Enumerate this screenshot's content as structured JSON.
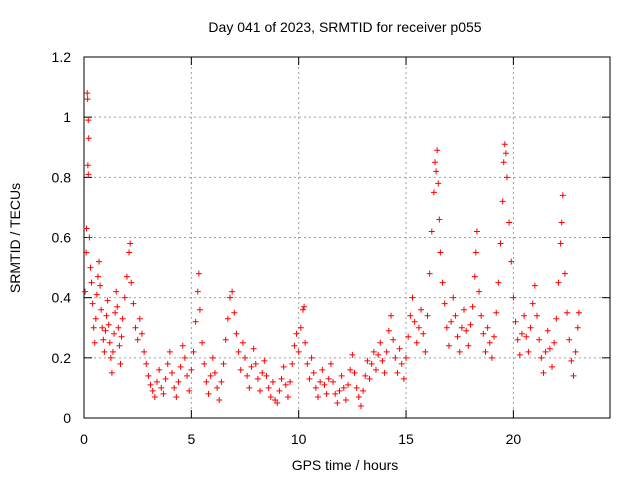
{
  "chart_data": {
    "type": "scatter",
    "title": "Day 041 of 2023, SRMTID for receiver p055",
    "xlabel": "GPS time / hours",
    "ylabel": "SRMTID / TECUs",
    "xlim": [
      0,
      24.5
    ],
    "ylim": [
      0,
      1.2
    ],
    "xticks": [
      0,
      5,
      10,
      15,
      20
    ],
    "yticks": [
      0,
      0.2,
      0.4,
      0.6,
      0.8,
      1,
      1.2
    ],
    "grid": true,
    "marker": "+",
    "color": "#ff0000",
    "series": [
      {
        "name": "SRMTID",
        "points": [
          [
            0.05,
            0.42
          ],
          [
            0.1,
            0.55
          ],
          [
            0.12,
            0.63
          ],
          [
            0.15,
            1.08
          ],
          [
            0.17,
            1.06
          ],
          [
            0.2,
            0.99
          ],
          [
            0.22,
            0.93
          ],
          [
            0.18,
            0.84
          ],
          [
            0.2,
            0.81
          ],
          [
            0.25,
            0.6
          ],
          [
            0.3,
            0.5
          ],
          [
            0.35,
            0.45
          ],
          [
            0.4,
            0.38
          ],
          [
            0.45,
            0.3
          ],
          [
            0.5,
            0.25
          ],
          [
            0.55,
            0.33
          ],
          [
            0.6,
            0.41
          ],
          [
            0.65,
            0.47
          ],
          [
            0.7,
            0.52
          ],
          [
            0.75,
            0.44
          ],
          [
            0.8,
            0.36
          ],
          [
            0.85,
            0.3
          ],
          [
            0.9,
            0.26
          ],
          [
            0.95,
            0.22
          ],
          [
            1.0,
            0.29
          ],
          [
            1.05,
            0.34
          ],
          [
            1.1,
            0.39
          ],
          [
            1.15,
            0.31
          ],
          [
            1.2,
            0.25
          ],
          [
            1.25,
            0.2
          ],
          [
            1.3,
            0.15
          ],
          [
            1.35,
            0.22
          ],
          [
            1.4,
            0.28
          ],
          [
            1.45,
            0.35
          ],
          [
            1.5,
            0.42
          ],
          [
            1.55,
            0.37
          ],
          [
            1.6,
            0.3
          ],
          [
            1.65,
            0.24
          ],
          [
            1.7,
            0.18
          ],
          [
            1.75,
            0.27
          ],
          [
            1.8,
            0.33
          ],
          [
            1.9,
            0.4
          ],
          [
            2.0,
            0.47
          ],
          [
            2.1,
            0.55
          ],
          [
            2.15,
            0.58
          ],
          [
            2.2,
            0.45
          ],
          [
            2.3,
            0.38
          ],
          [
            2.4,
            0.3
          ],
          [
            2.5,
            0.26
          ],
          [
            2.6,
            0.33
          ],
          [
            2.7,
            0.28
          ],
          [
            2.8,
            0.22
          ],
          [
            2.9,
            0.18
          ],
          [
            3.0,
            0.14
          ],
          [
            3.1,
            0.11
          ],
          [
            3.2,
            0.09
          ],
          [
            3.3,
            0.07
          ],
          [
            3.4,
            0.12
          ],
          [
            3.5,
            0.16
          ],
          [
            3.6,
            0.1
          ],
          [
            3.7,
            0.08
          ],
          [
            3.8,
            0.13
          ],
          [
            3.9,
            0.18
          ],
          [
            4.0,
            0.22
          ],
          [
            4.1,
            0.15
          ],
          [
            4.2,
            0.1
          ],
          [
            4.3,
            0.07
          ],
          [
            4.4,
            0.12
          ],
          [
            4.5,
            0.17
          ],
          [
            4.6,
            0.24
          ],
          [
            4.7,
            0.2
          ],
          [
            4.8,
            0.14
          ],
          [
            4.9,
            0.09
          ],
          [
            5.0,
            0.16
          ],
          [
            5.1,
            0.22
          ],
          [
            5.2,
            0.32
          ],
          [
            5.3,
            0.42
          ],
          [
            5.35,
            0.48
          ],
          [
            5.4,
            0.36
          ],
          [
            5.5,
            0.25
          ],
          [
            5.6,
            0.18
          ],
          [
            5.7,
            0.12
          ],
          [
            5.8,
            0.08
          ],
          [
            5.9,
            0.14
          ],
          [
            6.0,
            0.2
          ],
          [
            6.1,
            0.15
          ],
          [
            6.2,
            0.1
          ],
          [
            6.3,
            0.06
          ],
          [
            6.4,
            0.12
          ],
          [
            6.5,
            0.18
          ],
          [
            6.6,
            0.26
          ],
          [
            6.7,
            0.33
          ],
          [
            6.8,
            0.4
          ],
          [
            6.9,
            0.42
          ],
          [
            7.0,
            0.35
          ],
          [
            7.1,
            0.28
          ],
          [
            7.2,
            0.22
          ],
          [
            7.3,
            0.16
          ],
          [
            7.4,
            0.25
          ],
          [
            7.5,
            0.2
          ],
          [
            7.6,
            0.14
          ],
          [
            7.7,
            0.1
          ],
          [
            7.8,
            0.17
          ],
          [
            7.9,
            0.23
          ],
          [
            8.0,
            0.18
          ],
          [
            8.1,
            0.13
          ],
          [
            8.2,
            0.09
          ],
          [
            8.3,
            0.15
          ],
          [
            8.4,
            0.19
          ],
          [
            8.5,
            0.14
          ],
          [
            8.6,
            0.1
          ],
          [
            8.7,
            0.07
          ],
          [
            8.8,
            0.12
          ],
          [
            8.9,
            0.06
          ],
          [
            9.0,
            0.05
          ],
          [
            9.1,
            0.09
          ],
          [
            9.2,
            0.13
          ],
          [
            9.3,
            0.17
          ],
          [
            9.4,
            0.11
          ],
          [
            9.5,
            0.07
          ],
          [
            9.6,
            0.12
          ],
          [
            9.7,
            0.18
          ],
          [
            9.8,
            0.24
          ],
          [
            9.9,
            0.28
          ],
          [
            10.0,
            0.22
          ],
          [
            10.1,
            0.3
          ],
          [
            10.2,
            0.36
          ],
          [
            10.25,
            0.37
          ],
          [
            10.3,
            0.25
          ],
          [
            10.4,
            0.18
          ],
          [
            10.5,
            0.13
          ],
          [
            10.6,
            0.2
          ],
          [
            10.7,
            0.15
          ],
          [
            10.8,
            0.1
          ],
          [
            10.9,
            0.07
          ],
          [
            11.0,
            0.12
          ],
          [
            11.1,
            0.16
          ],
          [
            11.2,
            0.11
          ],
          [
            11.3,
            0.08
          ],
          [
            11.4,
            0.13
          ],
          [
            11.5,
            0.18
          ],
          [
            11.6,
            0.12
          ],
          [
            11.7,
            0.08
          ],
          [
            11.8,
            0.05
          ],
          [
            11.9,
            0.09
          ],
          [
            12.0,
            0.14
          ],
          [
            12.1,
            0.1
          ],
          [
            12.2,
            0.06
          ],
          [
            12.3,
            0.11
          ],
          [
            12.4,
            0.16
          ],
          [
            12.5,
            0.21
          ],
          [
            12.6,
            0.15
          ],
          [
            12.7,
            0.1
          ],
          [
            12.8,
            0.07
          ],
          [
            12.9,
            0.04
          ],
          [
            13.0,
            0.09
          ],
          [
            13.1,
            0.14
          ],
          [
            13.2,
            0.19
          ],
          [
            13.3,
            0.13
          ],
          [
            13.4,
            0.18
          ],
          [
            13.5,
            0.22
          ],
          [
            13.6,
            0.16
          ],
          [
            13.7,
            0.21
          ],
          [
            13.8,
            0.25
          ],
          [
            13.9,
            0.19
          ],
          [
            14.0,
            0.15
          ],
          [
            14.1,
            0.22
          ],
          [
            14.2,
            0.29
          ],
          [
            14.3,
            0.34
          ],
          [
            14.4,
            0.26
          ],
          [
            14.5,
            0.2
          ],
          [
            14.6,
            0.15
          ],
          [
            14.7,
            0.23
          ],
          [
            14.8,
            0.18
          ],
          [
            14.9,
            0.13
          ],
          [
            15.0,
            0.2
          ],
          [
            15.1,
            0.27
          ],
          [
            15.2,
            0.34
          ],
          [
            15.3,
            0.4
          ],
          [
            15.4,
            0.32
          ],
          [
            15.5,
            0.25
          ],
          [
            15.6,
            0.3
          ],
          [
            15.7,
            0.36
          ],
          [
            15.8,
            0.28
          ],
          [
            15.9,
            0.22
          ],
          [
            16.0,
            0.34
          ],
          [
            16.1,
            0.48
          ],
          [
            16.2,
            0.62
          ],
          [
            16.3,
            0.75
          ],
          [
            16.35,
            0.85
          ],
          [
            16.4,
            0.82
          ],
          [
            16.45,
            0.89
          ],
          [
            16.5,
            0.78
          ],
          [
            16.55,
            0.66
          ],
          [
            16.6,
            0.55
          ],
          [
            16.7,
            0.45
          ],
          [
            16.8,
            0.38
          ],
          [
            16.9,
            0.3
          ],
          [
            17.0,
            0.24
          ],
          [
            17.1,
            0.32
          ],
          [
            17.2,
            0.4
          ],
          [
            17.3,
            0.34
          ],
          [
            17.4,
            0.27
          ],
          [
            17.5,
            0.22
          ],
          [
            17.6,
            0.3
          ],
          [
            17.7,
            0.36
          ],
          [
            17.8,
            0.29
          ],
          [
            17.9,
            0.24
          ],
          [
            18.0,
            0.31
          ],
          [
            18.1,
            0.37
          ],
          [
            18.2,
            0.47
          ],
          [
            18.25,
            0.55
          ],
          [
            18.3,
            0.62
          ],
          [
            18.4,
            0.42
          ],
          [
            18.5,
            0.34
          ],
          [
            18.6,
            0.28
          ],
          [
            18.7,
            0.22
          ],
          [
            18.8,
            0.3
          ],
          [
            18.9,
            0.25
          ],
          [
            19.0,
            0.2
          ],
          [
            19.1,
            0.27
          ],
          [
            19.2,
            0.35
          ],
          [
            19.3,
            0.45
          ],
          [
            19.4,
            0.58
          ],
          [
            19.5,
            0.72
          ],
          [
            19.55,
            0.85
          ],
          [
            19.6,
            0.91
          ],
          [
            19.65,
            0.88
          ],
          [
            19.7,
            0.8
          ],
          [
            19.8,
            0.65
          ],
          [
            19.9,
            0.52
          ],
          [
            20.0,
            0.4
          ],
          [
            20.1,
            0.32
          ],
          [
            20.2,
            0.26
          ],
          [
            20.3,
            0.21
          ],
          [
            20.4,
            0.28
          ],
          [
            20.5,
            0.34
          ],
          [
            20.6,
            0.27
          ],
          [
            20.7,
            0.22
          ],
          [
            20.8,
            0.3
          ],
          [
            20.9,
            0.38
          ],
          [
            21.0,
            0.44
          ],
          [
            21.1,
            0.34
          ],
          [
            21.2,
            0.26
          ],
          [
            21.3,
            0.2
          ],
          [
            21.4,
            0.15
          ],
          [
            21.5,
            0.22
          ],
          [
            21.6,
            0.29
          ],
          [
            21.7,
            0.23
          ],
          [
            21.8,
            0.17
          ],
          [
            21.9,
            0.25
          ],
          [
            22.0,
            0.33
          ],
          [
            22.1,
            0.45
          ],
          [
            22.2,
            0.58
          ],
          [
            22.25,
            0.65
          ],
          [
            22.3,
            0.74
          ],
          [
            22.4,
            0.48
          ],
          [
            22.5,
            0.35
          ],
          [
            22.6,
            0.26
          ],
          [
            22.7,
            0.19
          ],
          [
            22.8,
            0.14
          ],
          [
            22.9,
            0.22
          ],
          [
            23.0,
            0.3
          ],
          [
            23.05,
            0.35
          ]
        ]
      }
    ]
  }
}
